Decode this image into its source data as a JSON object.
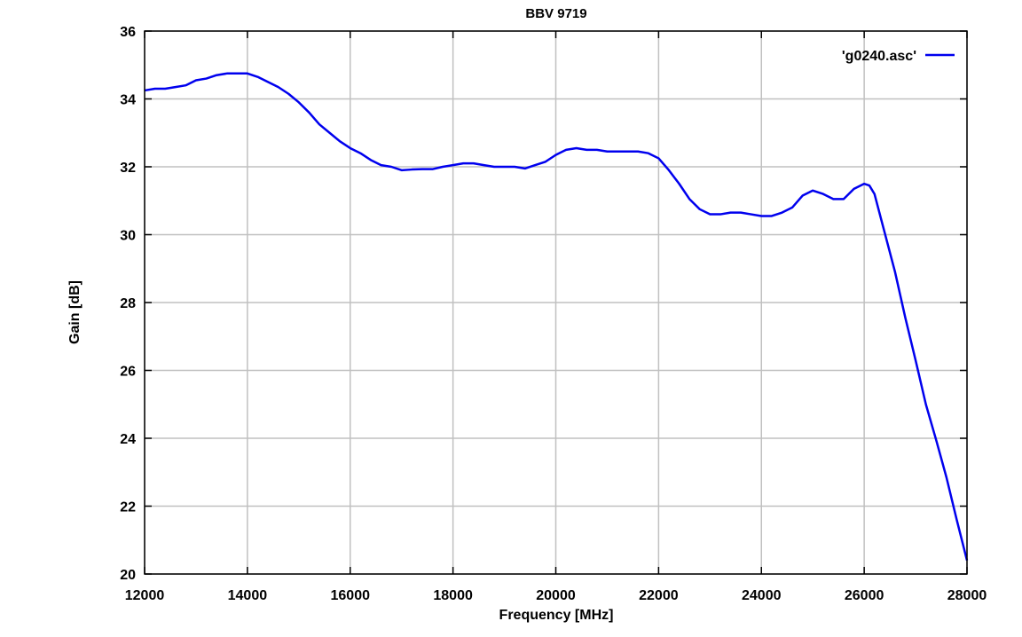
{
  "chart_data": {
    "type": "line",
    "title": "BBV 9719",
    "xlabel": "Frequency [MHz]",
    "ylabel": "Gain [dB]",
    "xlim": [
      12000,
      28000
    ],
    "ylim": [
      20,
      36
    ],
    "xticks": [
      12000,
      14000,
      16000,
      18000,
      20000,
      22000,
      24000,
      26000,
      28000
    ],
    "yticks": [
      20,
      22,
      24,
      26,
      28,
      30,
      32,
      34,
      36
    ],
    "grid": true,
    "legend_position": "top-right",
    "series": [
      {
        "name": "'g0240.asc'",
        "color": "#0000ee",
        "x": [
          12000,
          12200,
          12400,
          12600,
          12800,
          13000,
          13200,
          13400,
          13600,
          13800,
          14000,
          14200,
          14400,
          14600,
          14800,
          15000,
          15200,
          15400,
          15600,
          15800,
          16000,
          16200,
          16400,
          16600,
          16800,
          17000,
          17200,
          17400,
          17600,
          17800,
          18000,
          18200,
          18400,
          18600,
          18800,
          19000,
          19200,
          19400,
          19600,
          19800,
          20000,
          20200,
          20400,
          20600,
          20800,
          21000,
          21200,
          21400,
          21600,
          21800,
          22000,
          22200,
          22400,
          22600,
          22800,
          23000,
          23200,
          23400,
          23600,
          23800,
          24000,
          24200,
          24400,
          24600,
          24800,
          25000,
          25200,
          25400,
          25600,
          25800,
          26000,
          26100,
          26200,
          26400,
          26600,
          26800,
          27000,
          27200,
          27400,
          27600,
          27800,
          28000
        ],
        "y": [
          34.25,
          34.3,
          34.3,
          34.35,
          34.4,
          34.55,
          34.6,
          34.7,
          34.75,
          34.75,
          34.75,
          34.65,
          34.5,
          34.35,
          34.15,
          33.9,
          33.6,
          33.25,
          33.0,
          32.75,
          32.55,
          32.4,
          32.2,
          32.05,
          32.0,
          31.9,
          31.92,
          31.93,
          31.93,
          32.0,
          32.05,
          32.1,
          32.1,
          32.05,
          32.0,
          32.0,
          32.0,
          31.95,
          32.05,
          32.15,
          32.35,
          32.5,
          32.55,
          32.5,
          32.5,
          32.45,
          32.45,
          32.45,
          32.45,
          32.4,
          32.25,
          31.9,
          31.5,
          31.05,
          30.75,
          30.6,
          30.6,
          30.65,
          30.65,
          30.6,
          30.55,
          30.55,
          30.65,
          30.8,
          31.15,
          31.3,
          31.2,
          31.05,
          31.05,
          31.35,
          31.5,
          31.45,
          31.2,
          30.05,
          28.9,
          27.55,
          26.3,
          25.0,
          23.95,
          22.85,
          21.6,
          20.4
        ]
      }
    ]
  }
}
